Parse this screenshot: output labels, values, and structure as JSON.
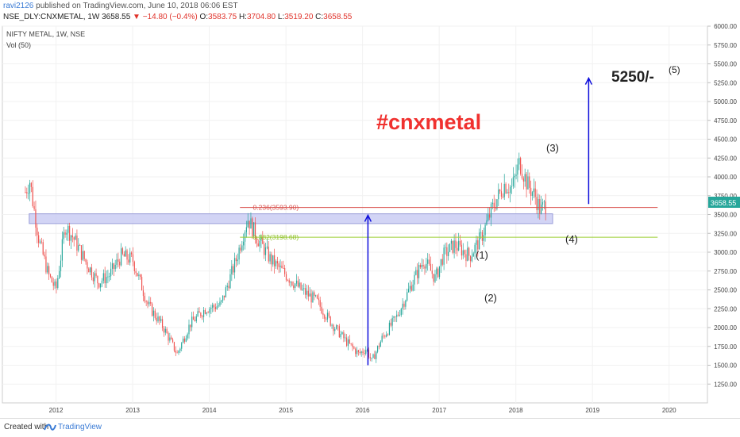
{
  "header": {
    "author": "ravi2126",
    "published": "published on TradingView.com, June 10, 2018 06:06 EST",
    "symbol": "NSE_DLY:CNXMETAL, 1W",
    "price": "3658.55",
    "arrow": "▼",
    "change": "−14.80 (−0.4%)",
    "o_label": "O:",
    "o_value": "3583.75",
    "h_label": "H:",
    "h_value": "3704.80",
    "l_label": "L:",
    "l_value": "3519.20",
    "c_label": "C:",
    "c_value": "3658.55"
  },
  "footer": {
    "created": "Created with",
    "brand": "TradingView"
  },
  "chart_data": {
    "type": "candlestick",
    "title": "NIFTY METAL, 1W, NSE",
    "subtitle": "Vol (50)",
    "xlim": [
      2011.3,
      2020.5
    ],
    "ylim": [
      1000,
      6000
    ],
    "x_ticks": [
      "2012",
      "2013",
      "2014",
      "2015",
      "2016",
      "2017",
      "2018",
      "2019",
      "2020"
    ],
    "y_ticks": [
      1250,
      1500,
      1750,
      2000,
      2250,
      2500,
      2750,
      3000,
      3250,
      3500,
      3750,
      4000,
      4250,
      4500,
      4750,
      5000,
      5250,
      5500,
      5750,
      6000
    ],
    "last_price": "3658.55",
    "colors": {
      "up": "#26a69a",
      "down": "#ef5350",
      "fib236": "#d9534f",
      "fib382": "#9acd32",
      "zone": "#c7c9f2",
      "arrow": "#0d0ddb",
      "hashtag": "#f0312f"
    },
    "series": [
      {
        "anchors": [
          [
            2011.6,
            3800
          ],
          [
            2011.66,
            3950
          ],
          [
            2011.7,
            3650
          ],
          [
            2011.78,
            3150
          ],
          [
            2011.9,
            2700
          ],
          [
            2012.0,
            2500
          ],
          [
            2012.12,
            3350
          ],
          [
            2012.22,
            3200
          ],
          [
            2012.4,
            2850
          ],
          [
            2012.55,
            2600
          ],
          [
            2012.7,
            2700
          ],
          [
            2012.85,
            2950
          ],
          [
            2013.0,
            2900
          ],
          [
            2013.2,
            2300
          ],
          [
            2013.4,
            2000
          ],
          [
            2013.58,
            1650
          ],
          [
            2013.75,
            2050
          ],
          [
            2013.95,
            2250
          ],
          [
            2014.15,
            2300
          ],
          [
            2014.35,
            2900
          ],
          [
            2014.5,
            3450
          ],
          [
            2014.62,
            3200
          ],
          [
            2014.8,
            2900
          ],
          [
            2015.0,
            2700
          ],
          [
            2015.2,
            2500
          ],
          [
            2015.4,
            2350
          ],
          [
            2015.6,
            2050
          ],
          [
            2015.8,
            1800
          ],
          [
            2015.95,
            1650
          ],
          [
            2016.05,
            1720
          ],
          [
            2016.12,
            1550
          ],
          [
            2016.25,
            1850
          ],
          [
            2016.45,
            2150
          ],
          [
            2016.65,
            2600
          ],
          [
            2016.8,
            2900
          ],
          [
            2016.95,
            2650
          ],
          [
            2017.05,
            2950
          ],
          [
            2017.2,
            3100
          ],
          [
            2017.4,
            2950
          ],
          [
            2017.55,
            3200
          ],
          [
            2017.7,
            3600
          ],
          [
            2017.85,
            3900
          ],
          [
            2017.95,
            3850
          ],
          [
            2018.05,
            4200
          ],
          [
            2018.15,
            3900
          ],
          [
            2018.25,
            3750
          ],
          [
            2018.32,
            3550
          ],
          [
            2018.4,
            3650
          ]
        ]
      }
    ],
    "annotations": {
      "hashtag": "#cnxmetal",
      "target": "5250/-",
      "target_wave": "(5)",
      "waves": [
        "(1)",
        "(2)",
        "(3)",
        "(4)"
      ],
      "fib_236": "0.236(3593.90)",
      "fib_382": "0.382(3198.68)",
      "fib_236_value": 3593.9,
      "fib_382_value": 3198.68,
      "zone": [
        3380,
        3510
      ],
      "arrow1": {
        "x": 2016.07,
        "from": 1500,
        "to": 3490
      },
      "arrow2": {
        "x": 2018.95,
        "from": 3640,
        "to": 5310
      }
    }
  }
}
